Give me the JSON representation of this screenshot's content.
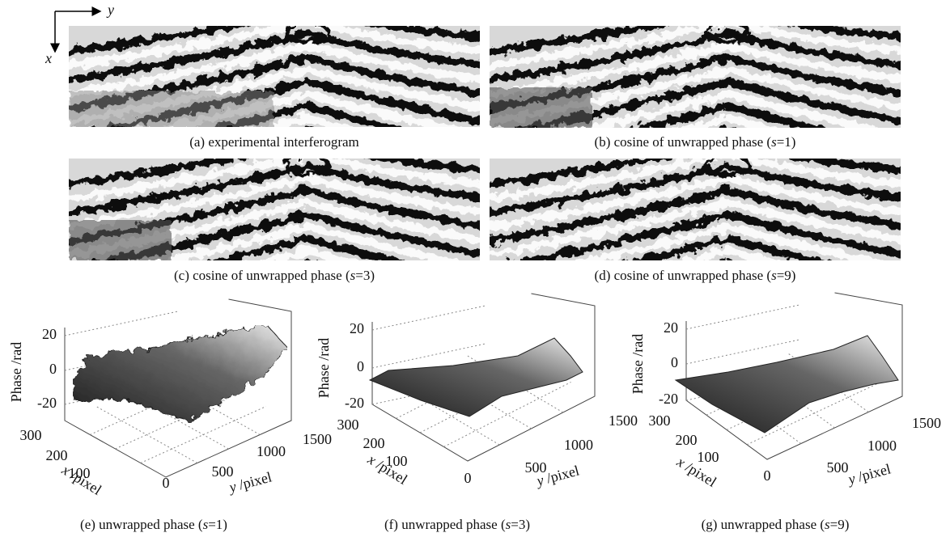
{
  "orientation": {
    "x": "x",
    "y": "y"
  },
  "images": [
    {
      "caption": [
        {
          "text": "(a) experimental interferogram"
        }
      ]
    },
    {
      "caption": [
        {
          "text": "(b) cosine of unwrapped phase ("
        },
        {
          "text": "s",
          "italic": true
        },
        {
          "text": "=1)"
        }
      ]
    },
    {
      "caption": [
        {
          "text": "(c) cosine of unwrapped phase ("
        },
        {
          "text": "s",
          "italic": true
        },
        {
          "text": "=3)"
        }
      ]
    },
    {
      "caption": [
        {
          "text": "(d) cosine of unwrapped phase ("
        },
        {
          "text": "s",
          "italic": true
        },
        {
          "text": "=9)"
        }
      ]
    }
  ],
  "plots": [
    {
      "caption": [
        {
          "text": "(e) unwrapped phase ("
        },
        {
          "text": "s",
          "italic": true
        },
        {
          "text": "=1)"
        }
      ],
      "z_label": "Phase /rad",
      "x_label": [
        {
          "text": "x",
          "italic": true
        },
        {
          "text": " /pixel"
        }
      ],
      "y_label": [
        {
          "text": "y",
          "italic": true
        },
        {
          "text": " /pixel"
        }
      ],
      "z_ticks": [
        "20",
        "0",
        "-20"
      ],
      "x_ticks": [
        "300",
        "200",
        "100",
        "0"
      ],
      "y_ticks": [
        "500",
        "1000",
        "1500"
      ]
    },
    {
      "caption": [
        {
          "text": "(f) unwrapped phase ("
        },
        {
          "text": "s",
          "italic": true
        },
        {
          "text": "=3)"
        }
      ],
      "z_label": "Phase /rad",
      "x_label": [
        {
          "text": "x",
          "italic": true
        },
        {
          "text": " /pixel"
        }
      ],
      "y_label": [
        {
          "text": "y",
          "italic": true
        },
        {
          "text": " /pixel"
        }
      ],
      "z_ticks": [
        "20",
        "0",
        "-20"
      ],
      "x_ticks": [
        "300",
        "200",
        "100",
        "0"
      ],
      "y_ticks": [
        "500",
        "1000",
        "1500"
      ]
    },
    {
      "caption": [
        {
          "text": "(g) unwrapped phase ("
        },
        {
          "text": "s",
          "italic": true
        },
        {
          "text": "=9)"
        }
      ],
      "z_label": "Phase /rad",
      "x_label": [
        {
          "text": "x",
          "italic": true
        },
        {
          "text": " /pixel"
        }
      ],
      "y_label": [
        {
          "text": "y",
          "italic": true
        },
        {
          "text": " /pixel"
        }
      ],
      "z_ticks": [
        "20",
        "0",
        "-20"
      ],
      "x_ticks": [
        "300",
        "200",
        "100",
        "0"
      ],
      "y_ticks": [
        "500",
        "1000",
        "1500"
      ]
    }
  ]
}
